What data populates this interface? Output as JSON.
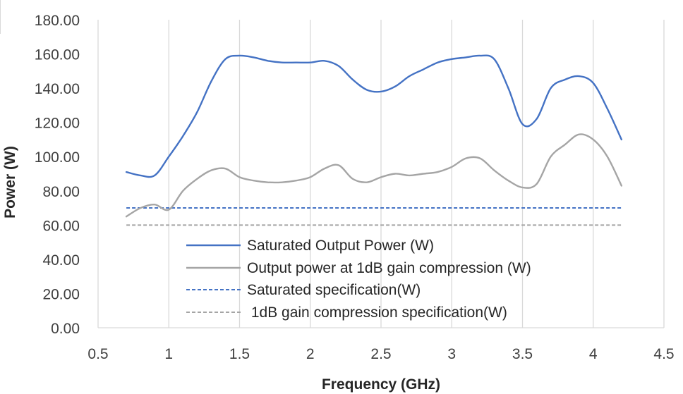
{
  "chart_data": {
    "type": "line",
    "title": "",
    "xlabel": "Frequency (GHz)",
    "ylabel": "Power (W)",
    "xlim": [
      0.5,
      4.5
    ],
    "ylim": [
      0,
      180
    ],
    "x_ticks": [
      "0.5",
      "1",
      "1.5",
      "2",
      "2.5",
      "3",
      "3.5",
      "4",
      "4.5"
    ],
    "y_ticks": [
      "0.00",
      "20.00",
      "40.00",
      "60.00",
      "80.00",
      "100.00",
      "120.00",
      "140.00",
      "160.00",
      "180.00"
    ],
    "grid": "vertical",
    "legend_position": "bottom-center (inside plot)",
    "series": [
      {
        "name": "Saturated Output Power (W)",
        "color": "#4472c4",
        "style": "solid",
        "x": [
          0.7,
          0.8,
          0.9,
          1.0,
          1.1,
          1.2,
          1.3,
          1.4,
          1.5,
          1.6,
          1.7,
          1.8,
          1.9,
          2.0,
          2.1,
          2.2,
          2.3,
          2.4,
          2.5,
          2.6,
          2.7,
          2.8,
          2.9,
          3.0,
          3.1,
          3.2,
          3.3,
          3.4,
          3.5,
          3.6,
          3.7,
          3.8,
          3.9,
          4.0,
          4.1,
          4.2
        ],
        "values": [
          91,
          89,
          89,
          100,
          112,
          126,
          144,
          157,
          159,
          158,
          156,
          155,
          155,
          155,
          156,
          153,
          145,
          139,
          138,
          141,
          147,
          151,
          155,
          157,
          158,
          159,
          157,
          140,
          119,
          122,
          140,
          145,
          147,
          143,
          128,
          110
        ]
      },
      {
        "name": "Output power at 1dB gain compression (W)",
        "color": "#a5a5a5",
        "style": "solid",
        "x": [
          0.7,
          0.8,
          0.9,
          1.0,
          1.1,
          1.2,
          1.3,
          1.4,
          1.5,
          1.6,
          1.7,
          1.8,
          1.9,
          2.0,
          2.1,
          2.2,
          2.3,
          2.4,
          2.5,
          2.6,
          2.7,
          2.8,
          2.9,
          3.0,
          3.1,
          3.2,
          3.3,
          3.4,
          3.5,
          3.6,
          3.7,
          3.8,
          3.9,
          4.0,
          4.1,
          4.2
        ],
        "values": [
          65,
          70,
          72,
          69,
          80,
          87,
          92,
          93,
          88,
          86,
          85,
          85,
          86,
          88,
          93,
          95,
          87,
          85,
          88,
          90,
          89,
          90,
          91,
          94,
          99,
          99,
          92,
          86,
          82,
          84,
          100,
          107,
          113,
          110,
          100,
          83
        ]
      },
      {
        "name": "Saturated specification(W)",
        "color": "#4472c4",
        "style": "dashed",
        "x": [
          0.7,
          4.2
        ],
        "values": [
          70,
          70
        ]
      },
      {
        "name": " 1dB gain compression specification(W)",
        "color": "#a5a5a5",
        "style": "dashed",
        "x": [
          0.7,
          4.2
        ],
        "values": [
          60,
          60
        ]
      }
    ]
  }
}
